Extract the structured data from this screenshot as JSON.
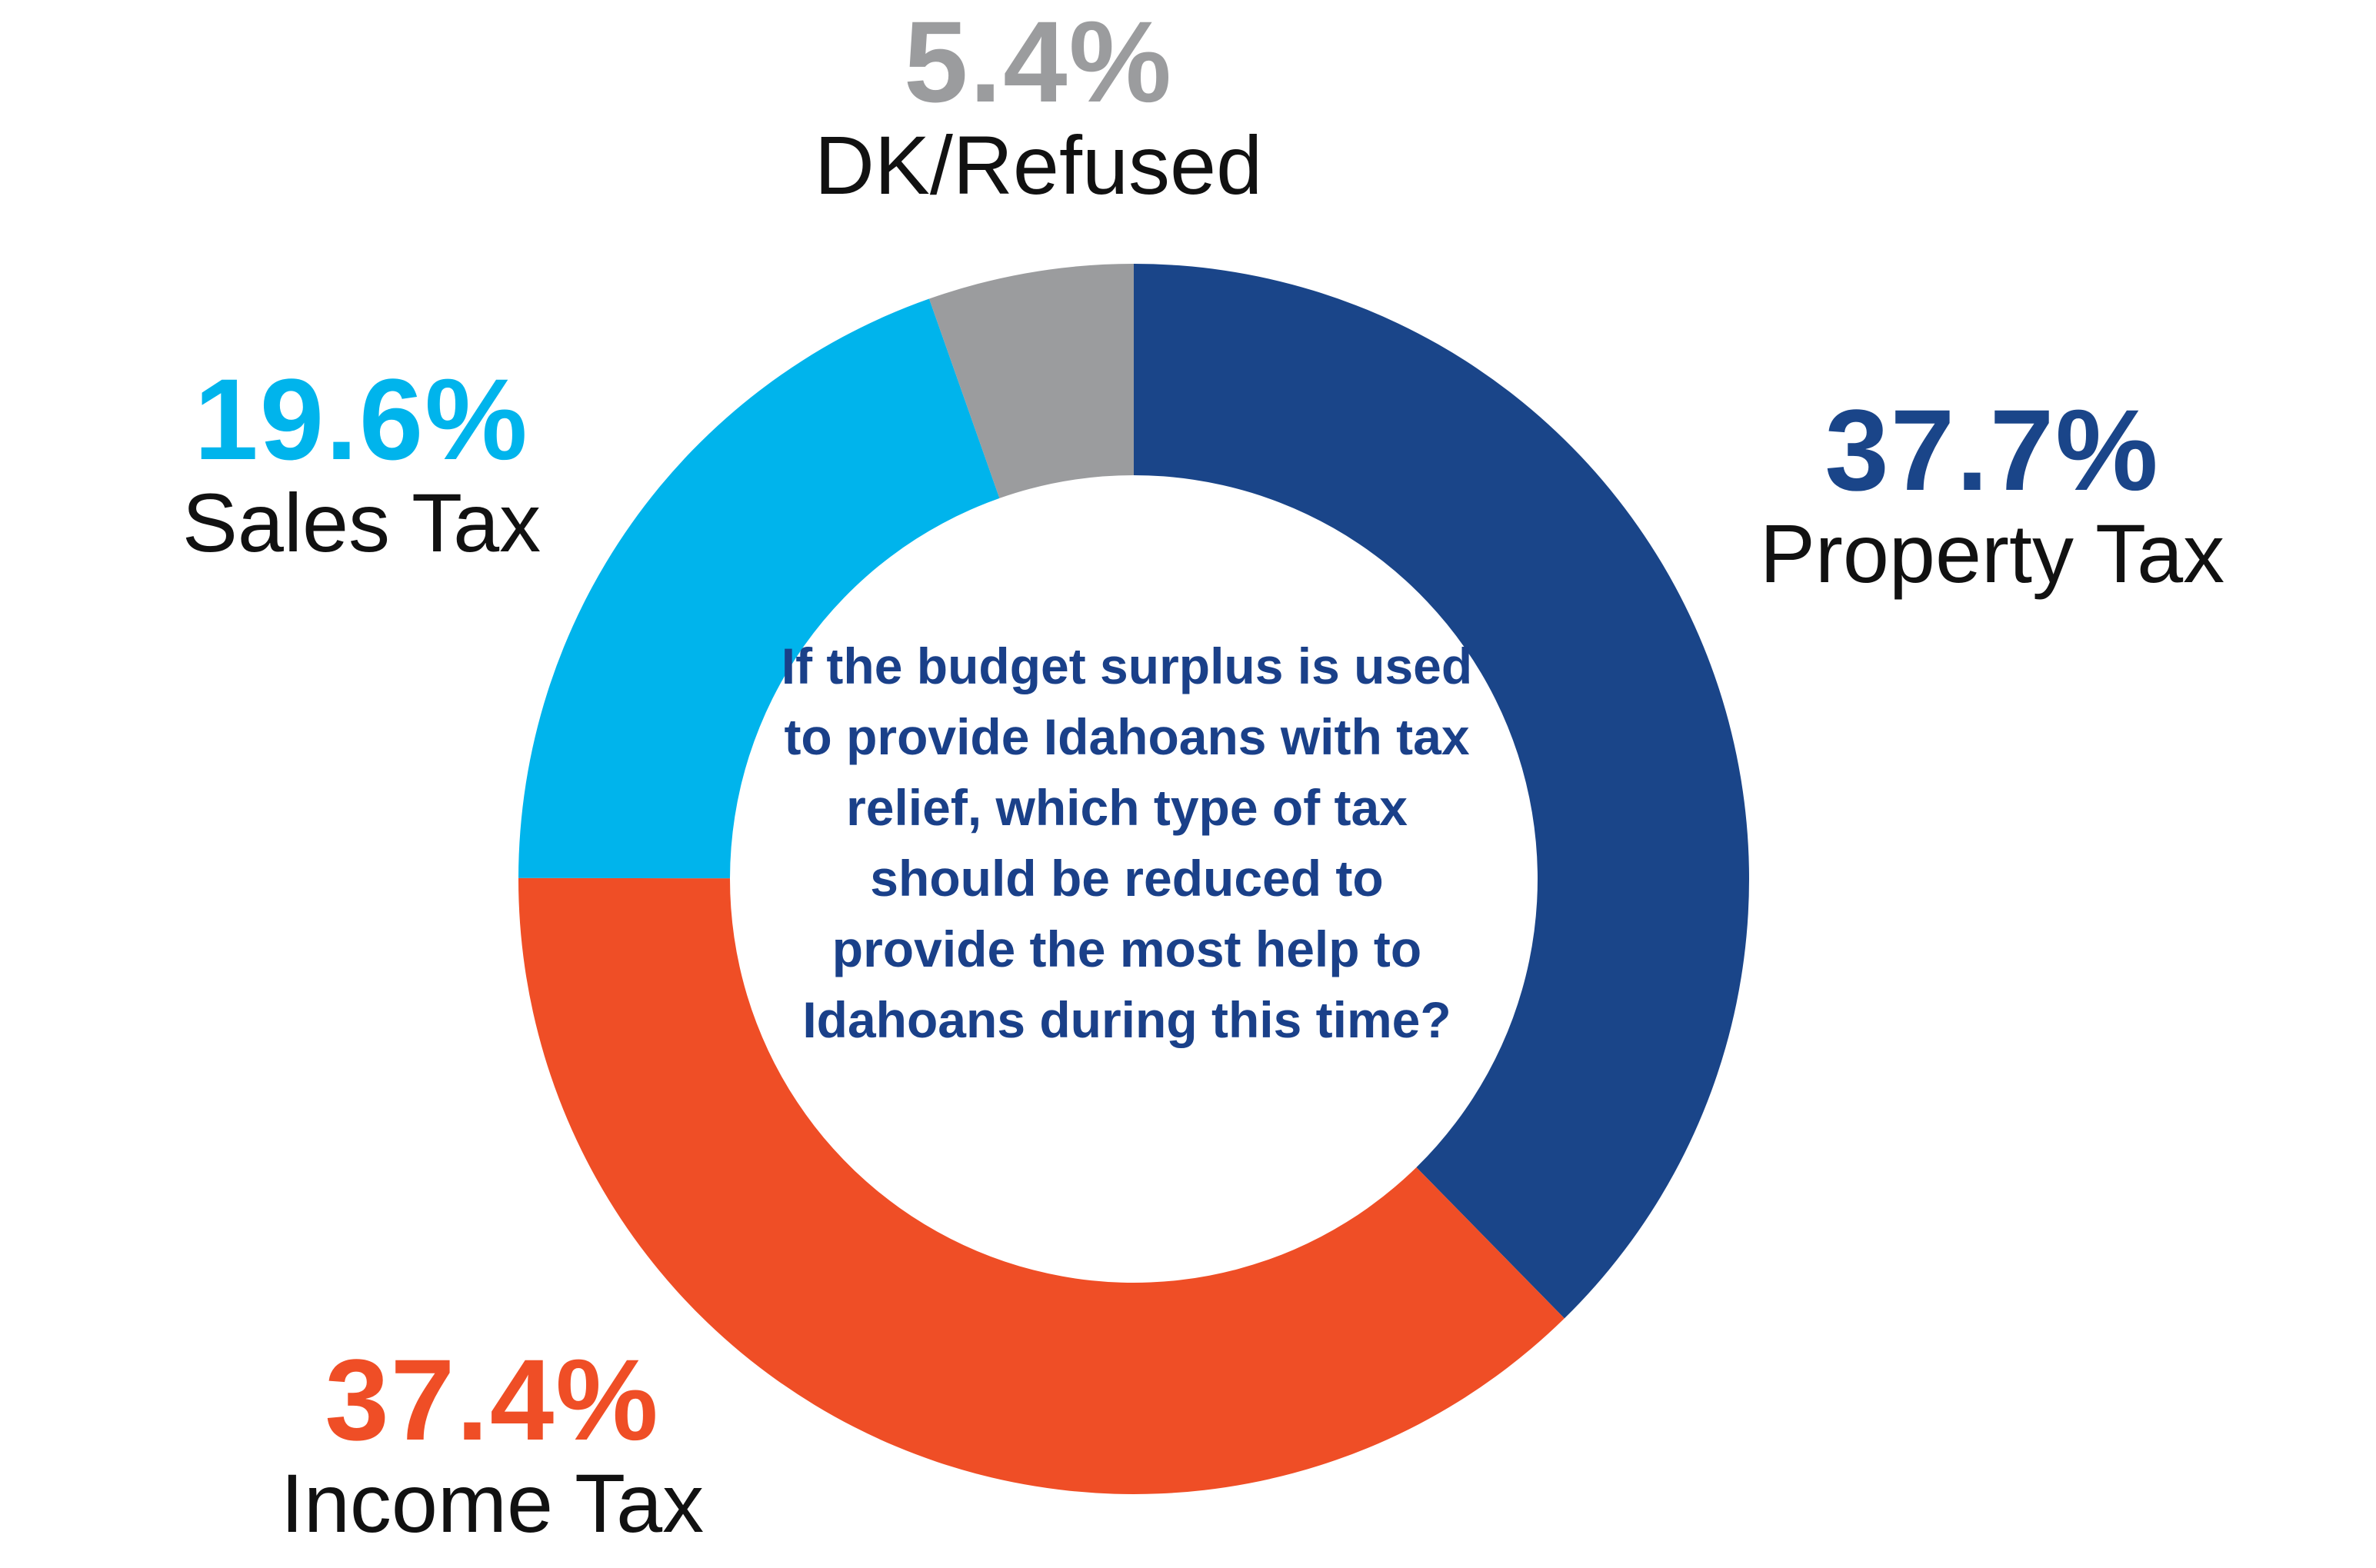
{
  "chart_data": {
    "type": "pie",
    "donut": true,
    "center_text": "If the budget surplus is used to provide Idahoans with tax relief, which type of tax should be reduced to provide the most help to Idahoans during this time?",
    "slices": [
      {
        "name": "Property Tax",
        "value": 37.7,
        "display": "37.7%",
        "color": "#1a4589"
      },
      {
        "name": "Income Tax",
        "value": 37.4,
        "display": "37.4%",
        "color": "#ef4e26"
      },
      {
        "name": "Sales Tax",
        "value": 19.6,
        "display": "19.6%",
        "color": "#00b4ec"
      },
      {
        "name": "DK/Refused",
        "value": 5.4,
        "display": "5.4%",
        "color": "#9b9c9e"
      }
    ]
  }
}
